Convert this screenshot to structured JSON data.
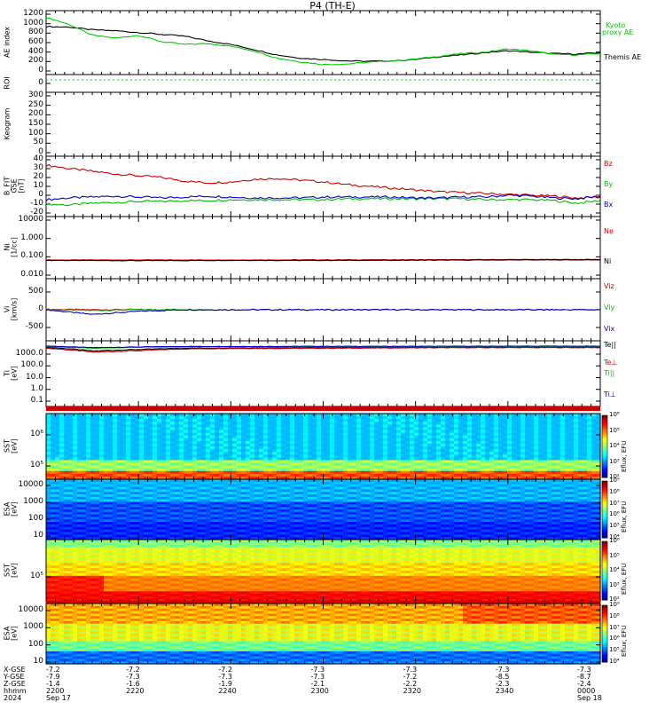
{
  "title": "P4 (TH-E)",
  "colors": {
    "ae_kyoto": "#00cc00",
    "ae_themis": "#000000",
    "bz": "#cc0000",
    "by": "#00bb00",
    "bx": "#0000cc",
    "ne": "#cc0000",
    "ni": "#000000",
    "ti_par": "#00bb00",
    "ti_perp": "#0000cc"
  },
  "panels": {
    "ae": {
      "ylabel": "AE index",
      "ticks": [
        "1200",
        "1000",
        "800",
        "600",
        "400",
        "200",
        "0"
      ],
      "legend_kyoto": "Kyoto",
      "legend_kyoto2": "proxy AE",
      "legend_themis": "Themis AE"
    },
    "roi": {
      "ylabel": "ROI",
      "ticks": [
        "0"
      ]
    },
    "keogram": {
      "ylabel": "Keogram",
      "ticks": [
        "300",
        "250",
        "200",
        "150",
        "100",
        "50",
        "0"
      ]
    },
    "bfield": {
      "ylabel1": "B_FIT",
      "ylabel2": "GSE",
      "ylabel3": "[nT]",
      "ticks": [
        "40",
        "30",
        "20",
        "10",
        "0",
        "-10",
        "-20"
      ],
      "labels": [
        "Bz",
        "By",
        "Bx"
      ]
    },
    "density": {
      "ylabel1": "Ni",
      "ylabel2": "[1/cc]",
      "ticks": [
        "10000",
        "1.000",
        "0.100",
        "0.010"
      ],
      "labels": [
        "Ne",
        "Ni"
      ]
    },
    "velocity": {
      "ylabel1": "Vi",
      "ylabel2": "[km/s]",
      "ticks": [
        "500",
        "0",
        "-500"
      ],
      "labels": [
        "Viz",
        "Viy",
        "Vix"
      ]
    },
    "temperature": {
      "ylabel1": "Ti",
      "ylabel2": "[eV]",
      "ticks": [
        "1000.0",
        "100.0",
        "10.0",
        "1.0",
        "0.1"
      ],
      "labels": [
        "Te||",
        "Te⊥",
        "Ti||",
        "Ti⊥"
      ]
    },
    "sst_e": {
      "ylabel1": "SST",
      "ylabel2": "[eV]",
      "ticks": [
        "10⁶",
        "10⁵"
      ],
      "cbar_ticks": [
        "10⁸",
        "10⁵",
        "10⁴",
        "10³",
        "10²"
      ],
      "cbar_label": "Eflux, EFU"
    },
    "esa_e": {
      "ylabel1": "ESA",
      "ylabel2": "[eV]",
      "ticks": [
        "10000",
        "1000",
        "100",
        "10"
      ],
      "cbar_ticks": [
        "10⁹",
        "10⁸",
        "10⁷",
        "10⁶",
        "10⁵",
        "10⁴"
      ],
      "cbar_label": "Eflux, EFU"
    },
    "sst_i": {
      "ylabel1": "SST",
      "ylabel2": "[eV]",
      "ticks": [
        "10⁵"
      ],
      "cbar_ticks": [
        "10⁶",
        "10⁵",
        "10⁴",
        "10³",
        "10²"
      ],
      "cbar_label": "Eflux, EFU"
    },
    "esa_i": {
      "ylabel1": "ESA",
      "ylabel2": "[eV]",
      "ticks": [
        "10000",
        "1000",
        "100",
        "10"
      ],
      "cbar_ticks": [
        "10⁹",
        "10⁸",
        "10⁷",
        "10⁶",
        "10⁵",
        "10⁴"
      ],
      "cbar_label": "Eflux, EFU"
    }
  },
  "bottom": {
    "row_labels": [
      "X-GSE",
      "Y-GSE",
      "Z-GSE",
      "hhmm",
      "2024"
    ],
    "columns": [
      {
        "x": "-7.2",
        "y": "-7.9",
        "z": "-1.4",
        "t": "2200",
        "d": "Sep 17"
      },
      {
        "x": "-7.2",
        "y": "-7.3",
        "z": "-1.6",
        "t": "2220",
        "d": ""
      },
      {
        "x": "-7.2",
        "y": "-7.3",
        "z": "-1.9",
        "t": "2240",
        "d": ""
      },
      {
        "x": "-7.3",
        "y": "-7.3",
        "z": "-2.1",
        "t": "2300",
        "d": ""
      },
      {
        "x": "-7.3",
        "y": "-7.2",
        "z": "-2.2",
        "t": "2320",
        "d": ""
      },
      {
        "x": "-7.3",
        "y": "-8.5",
        "z": "-2.3",
        "t": "2340",
        "d": ""
      },
      {
        "x": "-7.3",
        "y": "-8.7",
        "z": "-2.4",
        "t": "0000",
        "d": "Sep 18"
      }
    ]
  },
  "chart_data": [
    {
      "type": "line",
      "name": "ae",
      "x": [
        0,
        5,
        10,
        15,
        20,
        25,
        30,
        35,
        40,
        45,
        50,
        55,
        60,
        65,
        70,
        75,
        80,
        85,
        90,
        95,
        100,
        105,
        110,
        115,
        120
      ],
      "series": [
        {
          "name": "Themis AE",
          "values": [
            950,
            940,
            880,
            860,
            820,
            780,
            740,
            640,
            560,
            450,
            330,
            260,
            230,
            200,
            190,
            200,
            230,
            290,
            330,
            380,
            420,
            390,
            360,
            350,
            380
          ]
        },
        {
          "name": "Kyoto proxy AE",
          "values": [
            1150,
            1000,
            760,
            700,
            760,
            620,
            560,
            580,
            520,
            420,
            260,
            180,
            120,
            130,
            170,
            200,
            240,
            300,
            360,
            390,
            460,
            420,
            340,
            330,
            360
          ]
        }
      ],
      "ylim": [
        -100,
        1300
      ]
    },
    {
      "type": "line",
      "name": "bfield",
      "x": [
        0,
        5,
        10,
        15,
        20,
        25,
        30,
        35,
        40,
        45,
        50,
        55,
        60,
        65,
        70,
        75,
        80,
        85,
        90,
        95,
        100,
        105,
        110,
        115,
        120
      ],
      "series": [
        {
          "name": "Bz",
          "values": [
            34,
            30,
            27,
            24,
            22,
            20,
            16,
            14,
            15,
            18,
            19,
            17,
            15,
            12,
            10,
            8,
            6,
            4,
            3,
            2,
            1,
            0,
            -1,
            -3,
            -2
          ]
        },
        {
          "name": "By",
          "values": [
            -10,
            -11,
            -9,
            -8,
            -7,
            -7,
            -6,
            -6,
            -5,
            -5,
            -5,
            -5,
            -5,
            -4,
            -4,
            -4,
            -4,
            -4,
            -4,
            -5,
            -5,
            -5,
            -6,
            -9,
            -6
          ]
        },
        {
          "name": "Bx",
          "values": [
            -5,
            -3,
            -2,
            -1,
            -2,
            -3,
            -2,
            -1,
            -2,
            -3,
            -3,
            -3,
            -2,
            -2,
            -2,
            -2,
            -3,
            -3,
            -2,
            -2,
            0,
            -1,
            -3,
            -4,
            -1
          ]
        }
      ],
      "ylim": [
        -20,
        40
      ]
    },
    {
      "type": "line",
      "name": "density",
      "x": [
        0,
        20,
        40,
        60,
        80,
        100,
        120
      ],
      "series": [
        {
          "name": "Ne",
          "values": [
            0.45,
            0.45,
            0.45,
            0.46,
            0.48,
            0.5,
            0.52
          ]
        },
        {
          "name": "Ni",
          "values": [
            0.4,
            0.38,
            0.4,
            0.4,
            0.42,
            0.45,
            0.46
          ]
        }
      ],
      "ylim": [
        0.01,
        10000
      ]
    },
    {
      "type": "line",
      "name": "velocity",
      "x": [
        0,
        10,
        20,
        30,
        40,
        60,
        80,
        100,
        120
      ],
      "series": [
        {
          "name": "Viz",
          "values": [
            10,
            0,
            5,
            0,
            0,
            0,
            0,
            0,
            0
          ]
        },
        {
          "name": "Viy",
          "values": [
            0,
            -20,
            0,
            10,
            0,
            0,
            0,
            0,
            0
          ]
        },
        {
          "name": "Vix",
          "values": [
            0,
            -120,
            -40,
            0,
            0,
            0,
            0,
            0,
            0
          ]
        }
      ],
      "ylim": [
        -800,
        800
      ]
    },
    {
      "type": "line",
      "name": "temperature",
      "x": [
        0,
        10,
        20,
        30,
        40,
        60,
        80,
        100,
        120
      ],
      "series": [
        {
          "name": "Te||",
          "values": [
            3000,
            1500,
            2000,
            2500,
            2600,
            2800,
            3000,
            3000,
            3000
          ]
        },
        {
          "name": "Te⊥",
          "values": [
            2500,
            1200,
            1600,
            2200,
            2400,
            2500,
            2700,
            2800,
            2800
          ]
        },
        {
          "name": "Ti||",
          "values": [
            3500,
            2500,
            3000,
            3200,
            3300,
            3300,
            3400,
            3500,
            3500
          ]
        },
        {
          "name": "Ti⊥",
          "values": [
            3800,
            2800,
            3200,
            3500,
            3500,
            3600,
            3600,
            3700,
            3700
          ]
        }
      ],
      "ylim": [
        0.05,
        10000
      ]
    }
  ]
}
